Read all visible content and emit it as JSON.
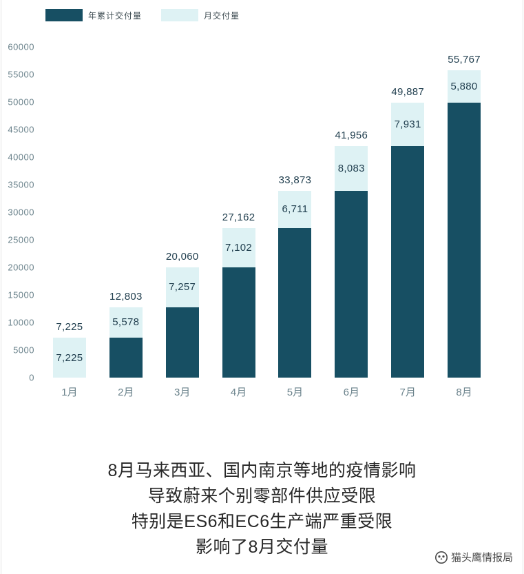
{
  "legend": [
    {
      "label": "年累计交付量",
      "color": "#174f63"
    },
    {
      "label": "月交付量",
      "color": "#def2f4"
    }
  ],
  "chart_data": {
    "type": "bar",
    "stacked": true,
    "title": "",
    "categories": [
      "1月",
      "2月",
      "3月",
      "4月",
      "5月",
      "6月",
      "7月",
      "8月"
    ],
    "series": [
      {
        "name": "年累计交付量",
        "values": [
          0,
          7225,
          12803,
          20060,
          27162,
          33873,
          41956,
          49887
        ]
      },
      {
        "name": "月交付量",
        "values": [
          7225,
          5578,
          7257,
          7102,
          6711,
          8083,
          7931,
          5880
        ]
      }
    ],
    "totals": [
      7225,
      12803,
      20060,
      27162,
      33873,
      41956,
      49887,
      55767
    ],
    "total_labels": [
      "7,225",
      "12,803",
      "20,060",
      "27,162",
      "33,873",
      "41,956",
      "49,887",
      "55,767"
    ],
    "monthly_labels": [
      "7,225",
      "5,578",
      "7,257",
      "7,102",
      "6,711",
      "8,083",
      "7,931",
      "5,880"
    ],
    "xlabel": "",
    "ylabel": "",
    "ylim": [
      0,
      60000
    ],
    "yticks": [
      0,
      5000,
      10000,
      15000,
      20000,
      25000,
      30000,
      35000,
      40000,
      45000,
      50000,
      55000,
      60000
    ],
    "grid": false,
    "legend_position": "top-left",
    "colors": {
      "cumulative": "#174f63",
      "monthly": "#def2f4"
    }
  },
  "caption": {
    "lines": [
      "8月马来西亚、国内南京等地的疫情影响",
      "导致蔚来个别零部件供应受限",
      "特别是ES6和EC6生产端严重受限",
      "影响了8月交付量"
    ]
  },
  "watermark": {
    "label": "猫头鹰情报局"
  }
}
